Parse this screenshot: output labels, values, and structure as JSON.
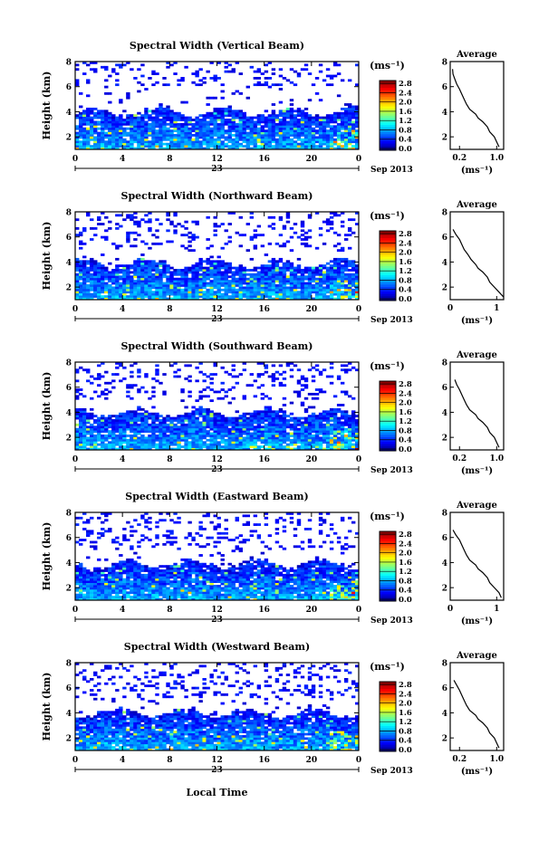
{
  "local_time_label": "Local Time",
  "chart_data": [
    {
      "type": "heatmap",
      "title": "Spectral Width (Vertical Beam)",
      "ylabel": "Height (km)",
      "x_ticks": [
        "0",
        "4",
        "8",
        "12",
        "16",
        "20",
        "0"
      ],
      "day_label": "23",
      "date_label": "Sep 2013",
      "y_ticks": [
        "2",
        "4",
        "6",
        "8"
      ],
      "ylim": [
        1,
        8
      ],
      "xlim": [
        0,
        24
      ],
      "colorbar": {
        "unit": "(ms⁻¹)",
        "ticks": [
          "0.0",
          "0.4",
          "0.8",
          "1.2",
          "1.6",
          "2.0",
          "2.4",
          "2.8"
        ],
        "range": [
          0,
          3.0
        ]
      },
      "average": {
        "title": "Average",
        "xlabel": "(ms⁻¹)",
        "x_ticks": [
          "0.2",
          "1.0"
        ],
        "y_ticks": [
          "2",
          "4",
          "6",
          "8"
        ],
        "profile": [
          [
            1.05,
            1.2
          ],
          [
            1.0,
            1.6
          ],
          [
            0.95,
            2.0
          ],
          [
            0.85,
            2.4
          ],
          [
            0.8,
            2.8
          ],
          [
            0.7,
            3.2
          ],
          [
            0.6,
            3.5
          ],
          [
            0.55,
            3.8
          ],
          [
            0.42,
            4.2
          ],
          [
            0.35,
            4.6
          ],
          [
            0.3,
            5.0
          ],
          [
            0.25,
            5.4
          ],
          [
            0.2,
            5.8
          ],
          [
            0.14,
            6.2
          ],
          [
            0.1,
            6.6
          ],
          [
            0.06,
            7.0
          ],
          [
            0.05,
            7.4
          ]
        ]
      },
      "cloud_top_km": 4.0,
      "scatter_top_km": 6.0
    },
    {
      "type": "heatmap",
      "title": "Spectral Width (Northward Beam)",
      "ylabel": "Height (km)",
      "x_ticks": [
        "0",
        "4",
        "8",
        "12",
        "16",
        "20",
        "0"
      ],
      "day_label": "23",
      "date_label": "Sep 2013",
      "y_ticks": [
        "2",
        "4",
        "6",
        "8"
      ],
      "ylim": [
        1,
        8
      ],
      "xlim": [
        0,
        24
      ],
      "colorbar": {
        "unit": "(ms⁻¹)",
        "ticks": [
          "0.0",
          "0.4",
          "0.8",
          "1.2",
          "1.6",
          "2.0",
          "2.4",
          "2.8"
        ],
        "range": [
          0,
          3.0
        ]
      },
      "average": {
        "title": "Average",
        "xlabel": "(ms⁻¹)",
        "x_ticks": [
          "0",
          "1"
        ],
        "y_ticks": [
          "2",
          "4",
          "6",
          "8"
        ],
        "profile": [
          [
            1.15,
            1.2
          ],
          [
            1.05,
            1.6
          ],
          [
            0.95,
            2.0
          ],
          [
            0.85,
            2.4
          ],
          [
            0.8,
            2.8
          ],
          [
            0.7,
            3.2
          ],
          [
            0.6,
            3.5
          ],
          [
            0.55,
            3.8
          ],
          [
            0.45,
            4.2
          ],
          [
            0.38,
            4.6
          ],
          [
            0.3,
            5.0
          ],
          [
            0.25,
            5.4
          ],
          [
            0.2,
            5.8
          ],
          [
            0.12,
            6.2
          ],
          [
            0.06,
            6.6
          ]
        ]
      },
      "cloud_top_km": 3.9,
      "scatter_top_km": 5.0
    },
    {
      "type": "heatmap",
      "title": "Spectral Width (Southward Beam)",
      "ylabel": "Height (km)",
      "x_ticks": [
        "0",
        "4",
        "8",
        "12",
        "16",
        "20",
        "0"
      ],
      "day_label": "23",
      "date_label": "Sep 2013",
      "y_ticks": [
        "2",
        "4",
        "6",
        "8"
      ],
      "ylim": [
        1,
        8
      ],
      "xlim": [
        0,
        24
      ],
      "colorbar": {
        "unit": "(ms⁻¹)",
        "ticks": [
          "0.0",
          "0.4",
          "0.8",
          "1.2",
          "1.6",
          "2.0",
          "2.4",
          "2.8"
        ],
        "range": [
          0,
          3.0
        ]
      },
      "average": {
        "title": "Average",
        "xlabel": "(ms⁻¹)",
        "x_ticks": [
          "0.2",
          "1.0"
        ],
        "y_ticks": [
          "2",
          "4",
          "6",
          "8"
        ],
        "profile": [
          [
            1.05,
            1.2
          ],
          [
            1.0,
            1.6
          ],
          [
            0.95,
            2.0
          ],
          [
            0.85,
            2.4
          ],
          [
            0.8,
            2.8
          ],
          [
            0.7,
            3.2
          ],
          [
            0.6,
            3.5
          ],
          [
            0.55,
            3.8
          ],
          [
            0.42,
            4.2
          ],
          [
            0.35,
            4.6
          ],
          [
            0.3,
            5.0
          ],
          [
            0.25,
            5.4
          ],
          [
            0.2,
            5.8
          ],
          [
            0.14,
            6.2
          ],
          [
            0.1,
            6.6
          ]
        ]
      },
      "cloud_top_km": 4.0,
      "scatter_top_km": 5.1
    },
    {
      "type": "heatmap",
      "title": "Spectral Width (Eastward Beam)",
      "ylabel": "Height (km)",
      "x_ticks": [
        "0",
        "4",
        "8",
        "12",
        "16",
        "20",
        "0"
      ],
      "day_label": "23",
      "date_label": "Sep 2013",
      "y_ticks": [
        "2",
        "4",
        "6",
        "8"
      ],
      "ylim": [
        1,
        8
      ],
      "xlim": [
        0,
        24
      ],
      "colorbar": {
        "unit": "(ms⁻¹)",
        "ticks": [
          "0.0",
          "0.4",
          "0.8",
          "1.2",
          "1.6",
          "2.0",
          "2.4",
          "2.8"
        ],
        "range": [
          0,
          3.0
        ]
      },
      "average": {
        "title": "Average",
        "xlabel": "(ms⁻¹)",
        "x_ticks": [
          "0",
          "1"
        ],
        "y_ticks": [
          "2",
          "4",
          "6",
          "8"
        ],
        "profile": [
          [
            1.1,
            1.2
          ],
          [
            1.05,
            1.6
          ],
          [
            0.95,
            2.0
          ],
          [
            0.85,
            2.4
          ],
          [
            0.8,
            2.8
          ],
          [
            0.7,
            3.2
          ],
          [
            0.6,
            3.5
          ],
          [
            0.55,
            3.8
          ],
          [
            0.42,
            4.2
          ],
          [
            0.35,
            4.6
          ],
          [
            0.3,
            5.0
          ],
          [
            0.25,
            5.4
          ],
          [
            0.2,
            5.8
          ],
          [
            0.12,
            6.2
          ],
          [
            0.06,
            6.6
          ]
        ]
      },
      "cloud_top_km": 3.9,
      "scatter_top_km": 5.0
    },
    {
      "type": "heatmap",
      "title": "Spectral Width (Westward Beam)",
      "ylabel": "Height (km)",
      "x_ticks": [
        "0",
        "4",
        "8",
        "12",
        "16",
        "20",
        "0"
      ],
      "day_label": "23",
      "date_label": "Sep 2013",
      "y_ticks": [
        "2",
        "4",
        "6",
        "8"
      ],
      "ylim": [
        1,
        8
      ],
      "xlim": [
        0,
        24
      ],
      "colorbar": {
        "unit": "(ms⁻¹)",
        "ticks": [
          "0.0",
          "0.4",
          "0.8",
          "1.2",
          "1.6",
          "2.0",
          "2.4",
          "2.8"
        ],
        "range": [
          0,
          3.0
        ]
      },
      "average": {
        "title": "Average",
        "xlabel": "(ms⁻¹)",
        "x_ticks": [
          "0.2",
          "1.0"
        ],
        "y_ticks": [
          "2",
          "4",
          "6",
          "8"
        ],
        "profile": [
          [
            1.05,
            1.2
          ],
          [
            1.0,
            1.6
          ],
          [
            0.95,
            2.0
          ],
          [
            0.85,
            2.4
          ],
          [
            0.8,
            2.8
          ],
          [
            0.7,
            3.2
          ],
          [
            0.6,
            3.5
          ],
          [
            0.55,
            3.8
          ],
          [
            0.42,
            4.2
          ],
          [
            0.35,
            4.6
          ],
          [
            0.3,
            5.0
          ],
          [
            0.25,
            5.4
          ],
          [
            0.2,
            5.8
          ],
          [
            0.14,
            6.2
          ],
          [
            0.08,
            6.6
          ]
        ]
      },
      "cloud_top_km": 4.0,
      "scatter_top_km": 5.2
    }
  ]
}
